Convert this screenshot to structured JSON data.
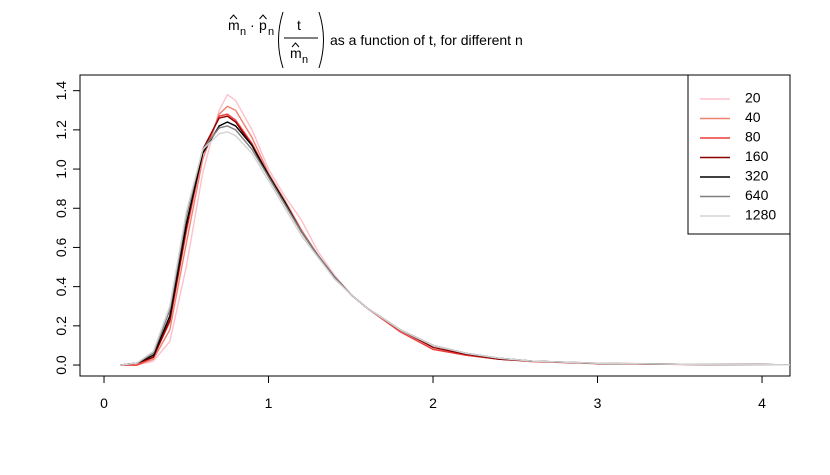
{
  "chart_data": {
    "type": "line",
    "title_parts": [
      "m",
      "n",
      "·",
      "p",
      "n",
      "t",
      "m",
      "n",
      "as a function of t, for different n"
    ],
    "x": [
      0.1,
      0.2,
      0.3,
      0.4,
      0.5,
      0.6,
      0.7,
      0.75,
      0.8,
      0.9,
      1.0,
      1.1,
      1.2,
      1.3,
      1.4,
      1.5,
      1.6,
      1.8,
      2.0,
      2.2,
      2.4,
      2.6,
      3.0,
      3.5,
      4.0,
      4.17
    ],
    "series": [
      {
        "name": "20",
        "color": "#ffc0cb",
        "values": [
          0,
          0,
          0.02,
          0.12,
          0.5,
          0.98,
          1.3,
          1.38,
          1.35,
          1.2,
          1.0,
          0.86,
          0.74,
          0.58,
          0.46,
          0.36,
          0.29,
          0.17,
          0.08,
          0.05,
          0.03,
          0.02,
          0.01,
          0.005,
          0.002,
          0.001
        ]
      },
      {
        "name": "40",
        "color": "#f08070",
        "values": [
          0,
          0,
          0.03,
          0.18,
          0.62,
          1.05,
          1.28,
          1.32,
          1.3,
          1.16,
          0.98,
          0.84,
          0.69,
          0.56,
          0.45,
          0.36,
          0.29,
          0.17,
          0.08,
          0.05,
          0.03,
          0.02,
          0.008,
          0.004,
          0.002,
          0.001
        ]
      },
      {
        "name": "80",
        "color": "#ee3b3b",
        "values": [
          0,
          0,
          0.04,
          0.22,
          0.68,
          1.08,
          1.27,
          1.28,
          1.25,
          1.13,
          0.97,
          0.83,
          0.68,
          0.56,
          0.45,
          0.36,
          0.29,
          0.17,
          0.08,
          0.05,
          0.03,
          0.018,
          0.007,
          0.003,
          0.002,
          0.001
        ]
      },
      {
        "name": "160",
        "color": "#8b0000",
        "values": [
          0,
          0.01,
          0.04,
          0.23,
          0.7,
          1.1,
          1.26,
          1.27,
          1.24,
          1.12,
          0.96,
          0.82,
          0.68,
          0.56,
          0.45,
          0.36,
          0.29,
          0.18,
          0.09,
          0.055,
          0.03,
          0.02,
          0.008,
          0.004,
          0.002,
          0.001
        ]
      },
      {
        "name": "320",
        "color": "#000000",
        "values": [
          0,
          0.01,
          0.05,
          0.25,
          0.72,
          1.08,
          1.22,
          1.24,
          1.22,
          1.12,
          0.97,
          0.83,
          0.68,
          0.56,
          0.45,
          0.36,
          0.29,
          0.18,
          0.1,
          0.06,
          0.035,
          0.02,
          0.008,
          0.004,
          0.002,
          0.001
        ]
      },
      {
        "name": "640",
        "color": "#808080",
        "values": [
          0,
          0.01,
          0.06,
          0.28,
          0.76,
          1.1,
          1.21,
          1.22,
          1.2,
          1.1,
          0.96,
          0.82,
          0.68,
          0.56,
          0.45,
          0.36,
          0.29,
          0.18,
          0.1,
          0.06,
          0.035,
          0.02,
          0.009,
          0.004,
          0.002,
          0.001
        ]
      },
      {
        "name": "1280",
        "color": "#d3d3d3",
        "values": [
          0,
          0.01,
          0.07,
          0.3,
          0.78,
          1.1,
          1.18,
          1.19,
          1.17,
          1.08,
          0.94,
          0.8,
          0.66,
          0.55,
          0.44,
          0.36,
          0.29,
          0.18,
          0.1,
          0.06,
          0.035,
          0.02,
          0.009,
          0.004,
          0.002,
          0.001
        ]
      }
    ],
    "xlim": [
      -0.146,
      4.17
    ],
    "ylim": [
      -0.056,
      1.48
    ],
    "xticks": [
      0,
      1,
      2,
      3,
      4
    ],
    "yticks": [
      {
        "value": 0,
        "label": "0.0"
      },
      0.2,
      0.4,
      0.6,
      0.8,
      {
        "value": 1,
        "label": "1.0"
      },
      1.2,
      1.4
    ],
    "legend": "top-right"
  }
}
